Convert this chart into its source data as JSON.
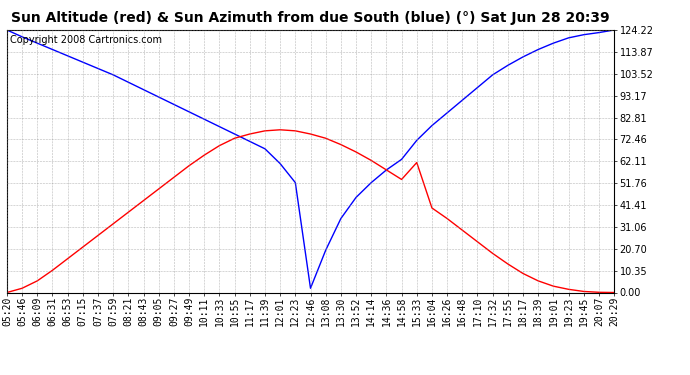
{
  "title": "Sun Altitude (red) & Sun Azimuth from due South (blue) (°) Sat Jun 28 20:39",
  "copyright": "Copyright 2008 Cartronics.com",
  "yticks": [
    0.0,
    10.35,
    20.7,
    31.06,
    41.41,
    51.76,
    62.11,
    72.46,
    82.81,
    93.17,
    103.52,
    113.87,
    124.22
  ],
  "xtick_labels": [
    "05:20",
    "05:46",
    "06:09",
    "06:31",
    "06:53",
    "07:15",
    "07:37",
    "07:59",
    "08:21",
    "08:43",
    "09:05",
    "09:27",
    "09:49",
    "10:11",
    "10:33",
    "10:55",
    "11:17",
    "11:39",
    "12:01",
    "12:23",
    "12:46",
    "13:08",
    "13:30",
    "13:52",
    "14:14",
    "14:36",
    "14:58",
    "15:33",
    "16:04",
    "16:26",
    "16:48",
    "17:10",
    "17:32",
    "17:55",
    "18:17",
    "18:39",
    "19:01",
    "19:23",
    "19:45",
    "20:07",
    "20:29"
  ],
  "blue_y": [
    124.22,
    121.0,
    118.0,
    115.0,
    112.0,
    109.0,
    106.0,
    103.0,
    99.5,
    96.0,
    92.5,
    89.0,
    85.5,
    82.0,
    78.5,
    75.0,
    71.5,
    68.0,
    61.0,
    52.0,
    2.0,
    20.0,
    35.0,
    45.0,
    52.0,
    58.0,
    63.0,
    72.0,
    79.0,
    85.0,
    91.0,
    97.0,
    103.0,
    107.5,
    111.5,
    115.0,
    118.0,
    120.5,
    122.0,
    123.0,
    124.22
  ],
  "red_y": [
    0.0,
    2.0,
    5.5,
    10.5,
    16.0,
    21.5,
    27.0,
    32.5,
    38.0,
    43.5,
    49.0,
    54.5,
    60.0,
    65.0,
    69.5,
    73.0,
    75.0,
    76.5,
    77.0,
    76.5,
    75.0,
    73.0,
    70.0,
    66.5,
    62.5,
    58.0,
    53.5,
    61.5,
    40.0,
    35.0,
    29.5,
    24.0,
    18.5,
    13.5,
    9.0,
    5.5,
    3.0,
    1.5,
    0.5,
    0.1,
    0.0
  ],
  "blue_color": "#0000ff",
  "red_color": "#ff0000",
  "bg_color": "#ffffff",
  "grid_color": "#888888",
  "title_fontsize": 10,
  "copyright_fontsize": 7,
  "tick_fontsize": 7
}
